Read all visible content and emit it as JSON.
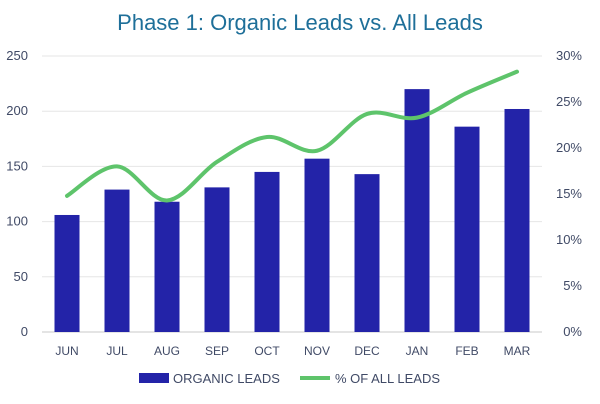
{
  "chart_data": {
    "type": "bar",
    "title": "Phase 1: Organic Leads vs. All Leads",
    "categories": [
      "JUN",
      "JUL",
      "AUG",
      "SEP",
      "OCT",
      "NOV",
      "DEC",
      "JAN",
      "FEB",
      "MAR"
    ],
    "series": [
      {
        "name": "ORGANIC LEADS",
        "type": "bar",
        "axis": "left",
        "color": "#2323a8",
        "values": [
          106,
          129,
          118,
          131,
          145,
          157,
          143,
          220,
          186,
          202
        ]
      },
      {
        "name": "% OF ALL LEADS",
        "type": "line",
        "axis": "right",
        "color": "#5ec46b",
        "values": [
          14.8,
          18.0,
          14.3,
          18.5,
          21.2,
          19.7,
          23.7,
          23.3,
          26.0,
          28.3
        ]
      }
    ],
    "ylim_left": [
      0,
      250
    ],
    "yticks_left": [
      "0",
      "50",
      "100",
      "150",
      "200",
      "250"
    ],
    "ylim_right": [
      0,
      30
    ],
    "yticks_right": [
      "0%",
      "5%",
      "10%",
      "15%",
      "20%",
      "25%",
      "30%"
    ],
    "grid": true,
    "legend": "bottom"
  }
}
